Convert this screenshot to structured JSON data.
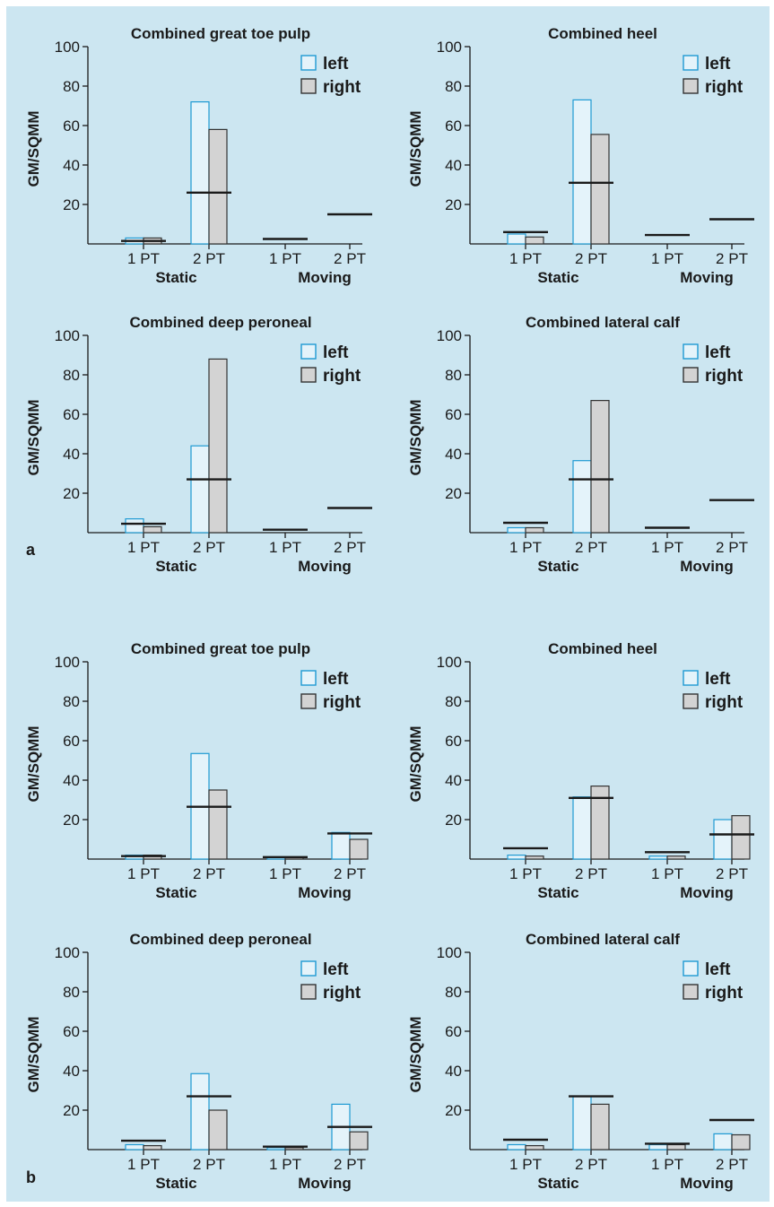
{
  "panel_labels": [
    "a",
    "b"
  ],
  "colors": {
    "background": "#cce6f1",
    "left_fill": "#e4f3fa",
    "left_stroke": "#1f9ad3",
    "right_fill": "#d3d3d3",
    "right_stroke": "#333333",
    "norm_line": "#1a1a1a"
  },
  "chart_data": [
    {
      "type": "bar",
      "panel": "a",
      "title": "Combined great toe pulp",
      "ylabel": "GM/SQMM",
      "ylim": [
        0,
        100
      ],
      "yticks": [
        20,
        40,
        60,
        80,
        100
      ],
      "categories": [
        "1 PT",
        "2 PT",
        "1 PT",
        "2 PT"
      ],
      "groups": [
        {
          "label": "Static",
          "categories": [
            0,
            1
          ]
        },
        {
          "label": "Moving",
          "categories": [
            2,
            3
          ]
        }
      ],
      "series": [
        {
          "name": "left",
          "values": [
            3,
            72,
            null,
            null
          ]
        },
        {
          "name": "right",
          "values": [
            3,
            58,
            null,
            null
          ]
        }
      ],
      "reference_lines": [
        1.5,
        26,
        2.5,
        15
      ],
      "legend": "top-right"
    },
    {
      "type": "bar",
      "panel": "a",
      "title": "Combined heel",
      "ylabel": "GM/SQMM",
      "ylim": [
        0,
        100
      ],
      "yticks": [
        20,
        40,
        60,
        80,
        100
      ],
      "categories": [
        "1 PT",
        "2 PT",
        "1 PT",
        "2 PT"
      ],
      "groups": [
        {
          "label": "Static",
          "categories": [
            0,
            1
          ]
        },
        {
          "label": "Moving",
          "categories": [
            2,
            3
          ]
        }
      ],
      "series": [
        {
          "name": "left",
          "values": [
            5,
            73,
            null,
            null
          ]
        },
        {
          "name": "right",
          "values": [
            3.5,
            55.5,
            null,
            null
          ]
        }
      ],
      "reference_lines": [
        6,
        31,
        4.5,
        12.5
      ],
      "legend": "top-right"
    },
    {
      "type": "bar",
      "panel": "a",
      "title": "Combined deep peroneal",
      "ylabel": "GM/SQMM",
      "ylim": [
        0,
        100
      ],
      "yticks": [
        20,
        40,
        60,
        80,
        100
      ],
      "categories": [
        "1 PT",
        "2 PT",
        "1 PT",
        "2 PT"
      ],
      "groups": [
        {
          "label": "Static",
          "categories": [
            0,
            1
          ]
        },
        {
          "label": "Moving",
          "categories": [
            2,
            3
          ]
        }
      ],
      "series": [
        {
          "name": "left",
          "values": [
            7,
            44,
            null,
            null
          ]
        },
        {
          "name": "right",
          "values": [
            3,
            88,
            null,
            null
          ]
        }
      ],
      "reference_lines": [
        4.5,
        27,
        1.5,
        12.5
      ],
      "legend": "top-right"
    },
    {
      "type": "bar",
      "panel": "a",
      "title": "Combined lateral calf",
      "ylabel": "GM/SQMM",
      "ylim": [
        0,
        100
      ],
      "yticks": [
        20,
        40,
        60,
        80,
        100
      ],
      "categories": [
        "1 PT",
        "2 PT",
        "1 PT",
        "2 PT"
      ],
      "groups": [
        {
          "label": "Static",
          "categories": [
            0,
            1
          ]
        },
        {
          "label": "Moving",
          "categories": [
            2,
            3
          ]
        }
      ],
      "series": [
        {
          "name": "left",
          "values": [
            2.5,
            36.5,
            null,
            null
          ]
        },
        {
          "name": "right",
          "values": [
            2.5,
            67,
            null,
            null
          ]
        }
      ],
      "reference_lines": [
        5,
        27,
        2.5,
        16.5
      ],
      "legend": "top-right"
    },
    {
      "type": "bar",
      "panel": "b",
      "title": "Combined great toe pulp",
      "ylabel": "GM/SQMM",
      "ylim": [
        0,
        100
      ],
      "yticks": [
        20,
        40,
        60,
        80,
        100
      ],
      "categories": [
        "1 PT",
        "2 PT",
        "1 PT",
        "2 PT"
      ],
      "groups": [
        {
          "label": "Static",
          "categories": [
            0,
            1
          ]
        },
        {
          "label": "Moving",
          "categories": [
            2,
            3
          ]
        }
      ],
      "series": [
        {
          "name": "left",
          "values": [
            2,
            53.5,
            1,
            13.5
          ]
        },
        {
          "name": "right",
          "values": [
            2,
            35,
            1,
            10
          ]
        }
      ],
      "reference_lines": [
        1.5,
        26.5,
        1,
        13
      ],
      "legend": "top-right"
    },
    {
      "type": "bar",
      "panel": "b",
      "title": "Combined heel",
      "ylabel": "GM/SQMM",
      "ylim": [
        0,
        100
      ],
      "yticks": [
        20,
        40,
        60,
        80,
        100
      ],
      "categories": [
        "1 PT",
        "2 PT",
        "1 PT",
        "2 PT"
      ],
      "groups": [
        {
          "label": "Static",
          "categories": [
            0,
            1
          ]
        },
        {
          "label": "Moving",
          "categories": [
            2,
            3
          ]
        }
      ],
      "series": [
        {
          "name": "left",
          "values": [
            2,
            31.5,
            1.5,
            20
          ]
        },
        {
          "name": "right",
          "values": [
            1.5,
            37,
            1.5,
            22
          ]
        }
      ],
      "reference_lines": [
        5.5,
        31,
        3.5,
        12.5
      ],
      "legend": "top-right"
    },
    {
      "type": "bar",
      "panel": "b",
      "title": "Combined deep peroneal",
      "ylabel": "GM/SQMM",
      "ylim": [
        0,
        100
      ],
      "yticks": [
        20,
        40,
        60,
        80,
        100
      ],
      "categories": [
        "1 PT",
        "2 PT",
        "1 PT",
        "2 PT"
      ],
      "groups": [
        {
          "label": "Static",
          "categories": [
            0,
            1
          ]
        },
        {
          "label": "Moving",
          "categories": [
            2,
            3
          ]
        }
      ],
      "series": [
        {
          "name": "left",
          "values": [
            2.5,
            38.5,
            1,
            23
          ]
        },
        {
          "name": "right",
          "values": [
            2,
            20,
            1,
            9
          ]
        }
      ],
      "reference_lines": [
        4.5,
        27,
        1.5,
        11.5
      ],
      "legend": "top-right"
    },
    {
      "type": "bar",
      "panel": "b",
      "title": "Combined lateral calf",
      "ylabel": "GM/SQMM",
      "ylim": [
        0,
        100
      ],
      "yticks": [
        20,
        40,
        60,
        80,
        100
      ],
      "categories": [
        "1 PT",
        "2 PT",
        "1 PT",
        "2 PT"
      ],
      "groups": [
        {
          "label": "Static",
          "categories": [
            0,
            1
          ]
        },
        {
          "label": "Moving",
          "categories": [
            2,
            3
          ]
        }
      ],
      "series": [
        {
          "name": "left",
          "values": [
            2.5,
            27,
            2.5,
            8
          ]
        },
        {
          "name": "right",
          "values": [
            2,
            23,
            2.5,
            7.5
          ]
        }
      ],
      "reference_lines": [
        5,
        27,
        3,
        15
      ],
      "legend": "top-right"
    }
  ]
}
